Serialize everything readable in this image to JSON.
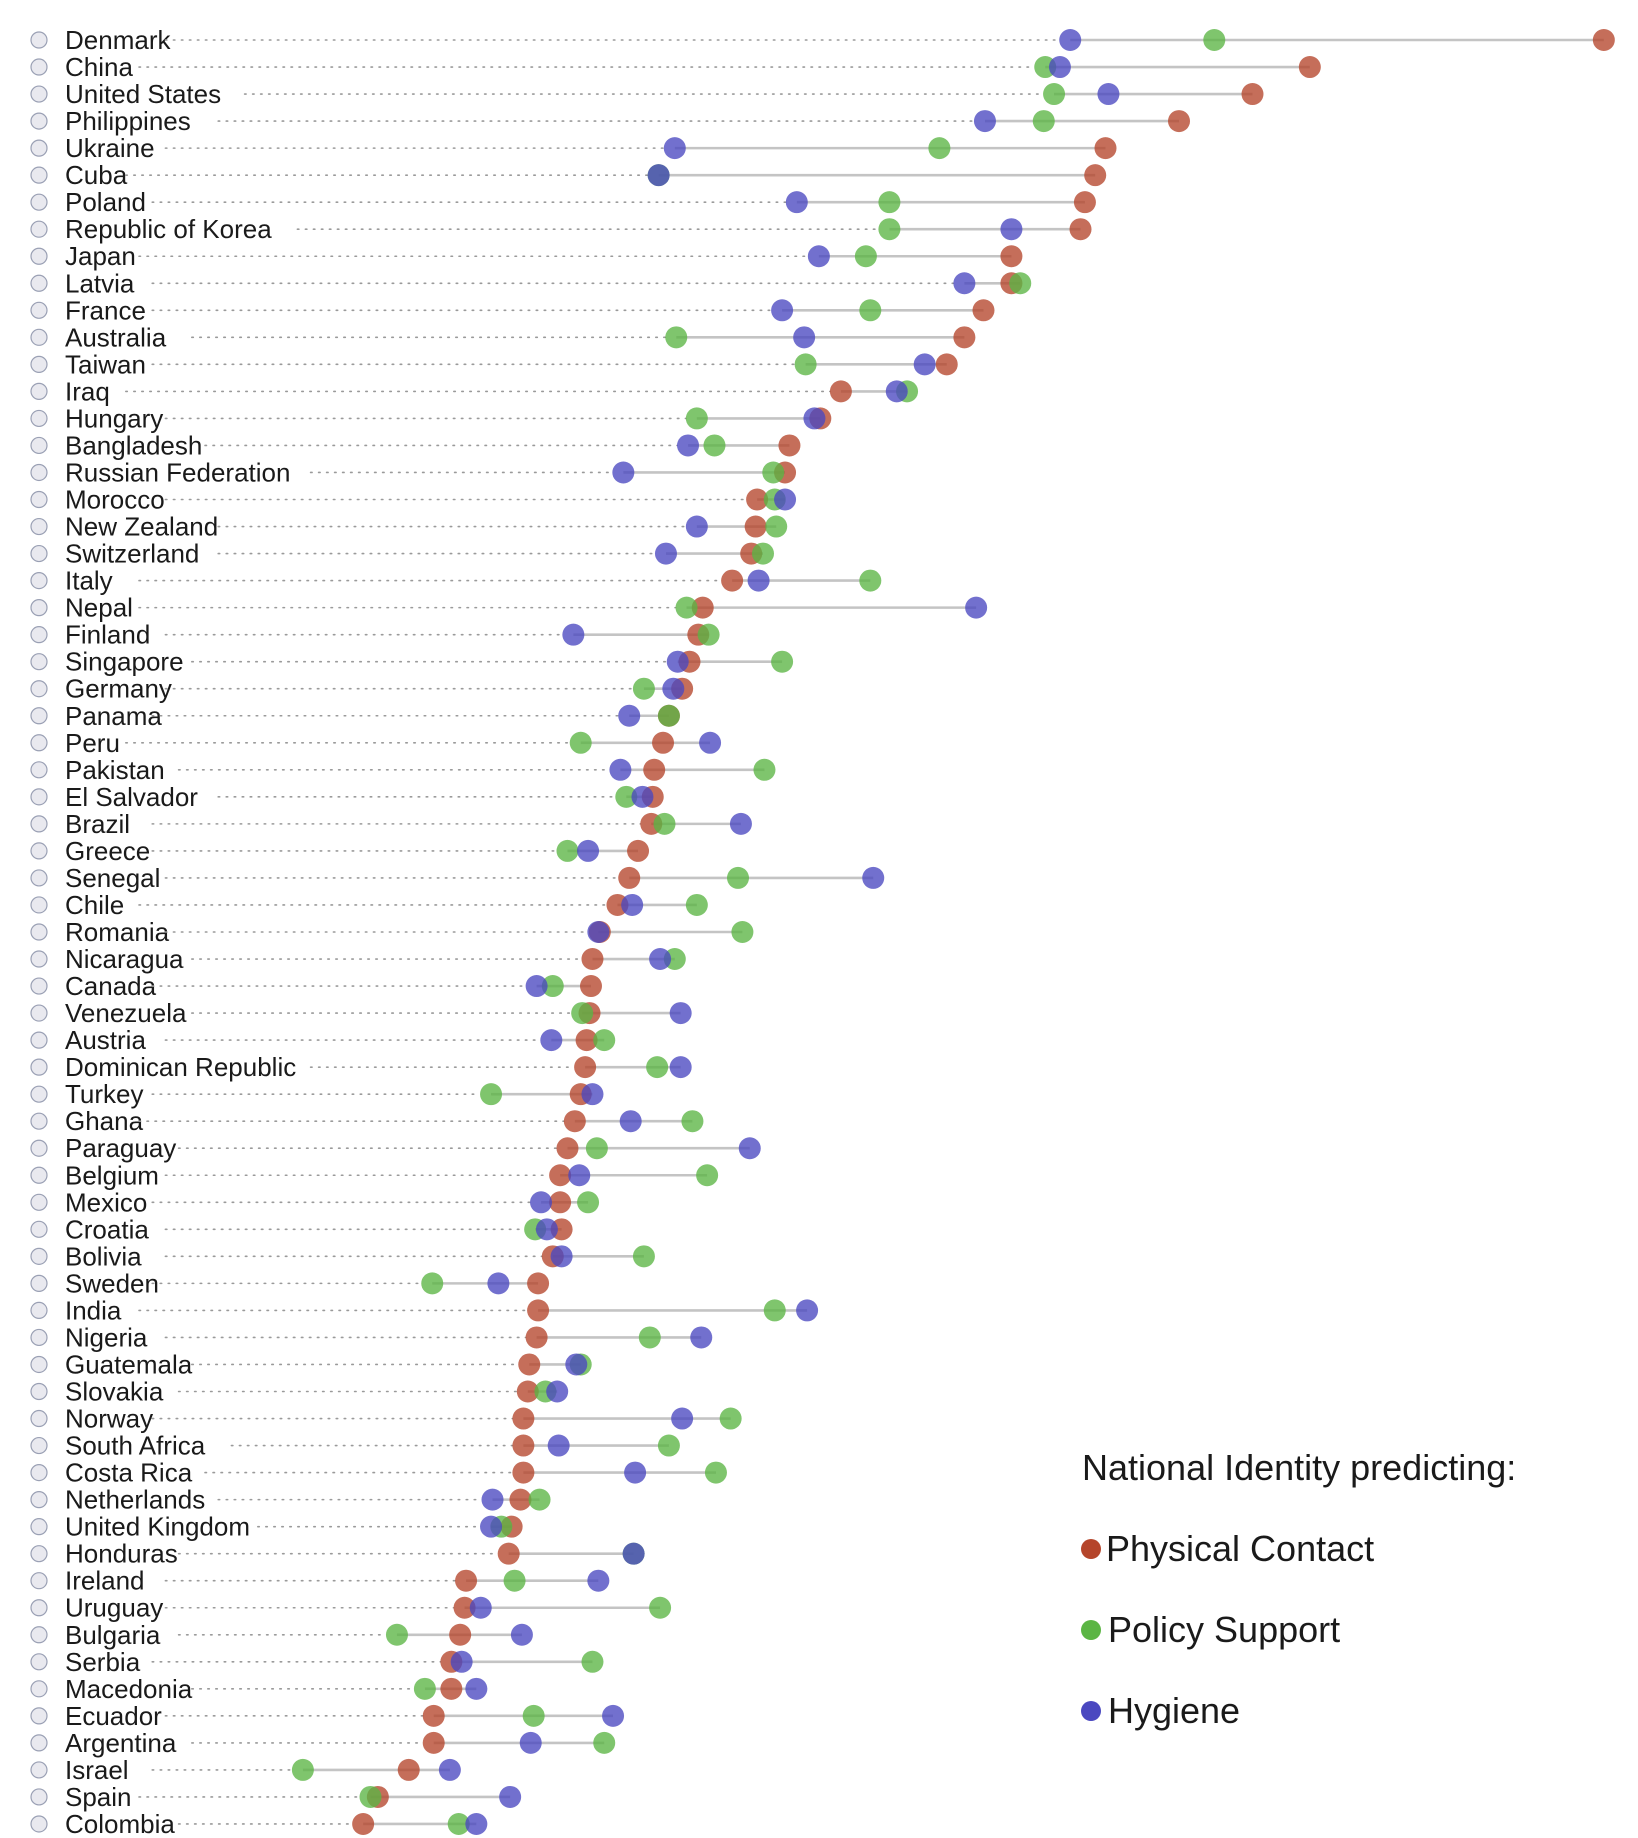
{
  "chart_data": {
    "type": "dot",
    "title": "",
    "xlabel": "",
    "ylabel": "",
    "xlim": [
      0,
      1
    ],
    "grid": false,
    "legend": {
      "title": "National Identity predicting:",
      "placement": "bottom-right",
      "entries": [
        {
          "key": "physical_contact",
          "label": "Physical Contact",
          "color": "#b5452b"
        },
        {
          "key": "policy_support",
          "label": "Policy Support",
          "color": "#5bb544"
        },
        {
          "key": "hygiene",
          "label": "Hygiene",
          "color": "#4a48c0"
        }
      ]
    },
    "series_keys": [
      "physical_contact",
      "policy_support",
      "hygiene"
    ],
    "rows": [
      {
        "country": "Denmark",
        "physical_contact": 0.989,
        "policy_support": 0.724,
        "hygiene": 0.626
      },
      {
        "country": "China",
        "physical_contact": 0.789,
        "policy_support": 0.609,
        "hygiene": 0.619
      },
      {
        "country": "United States",
        "physical_contact": 0.75,
        "policy_support": 0.615,
        "hygiene": 0.652
      },
      {
        "country": "Philippines",
        "physical_contact": 0.7,
        "policy_support": 0.608,
        "hygiene": 0.568
      },
      {
        "country": "Ukraine",
        "physical_contact": 0.65,
        "policy_support": 0.537,
        "hygiene": 0.357
      },
      {
        "country": "Cuba",
        "physical_contact": 0.643,
        "policy_support": 0.346,
        "hygiene": 0.346
      },
      {
        "country": "Poland",
        "physical_contact": 0.636,
        "policy_support": 0.503,
        "hygiene": 0.44
      },
      {
        "country": "Republic of Korea",
        "physical_contact": 0.633,
        "policy_support": 0.503,
        "hygiene": 0.586
      },
      {
        "country": "Japan",
        "physical_contact": 0.586,
        "policy_support": 0.487,
        "hygiene": 0.455
      },
      {
        "country": "Latvia",
        "physical_contact": 0.586,
        "policy_support": 0.592,
        "hygiene": 0.554
      },
      {
        "country": "France",
        "physical_contact": 0.567,
        "policy_support": 0.49,
        "hygiene": 0.43
      },
      {
        "country": "Australia",
        "physical_contact": 0.554,
        "policy_support": 0.358,
        "hygiene": 0.445
      },
      {
        "country": "Taiwan",
        "physical_contact": 0.542,
        "policy_support": 0.446,
        "hygiene": 0.527
      },
      {
        "country": "Iraq",
        "physical_contact": 0.47,
        "policy_support": 0.515,
        "hygiene": 0.508
      },
      {
        "country": "Hungary",
        "physical_contact": 0.456,
        "policy_support": 0.372,
        "hygiene": 0.452
      },
      {
        "country": "Bangladesh",
        "physical_contact": 0.435,
        "policy_support": 0.384,
        "hygiene": 0.366
      },
      {
        "country": "Russian Federation",
        "physical_contact": 0.432,
        "policy_support": 0.424,
        "hygiene": 0.322
      },
      {
        "country": "Morocco",
        "physical_contact": 0.413,
        "policy_support": 0.425,
        "hygiene": 0.432
      },
      {
        "country": "New Zealand",
        "physical_contact": 0.412,
        "policy_support": 0.426,
        "hygiene": 0.372
      },
      {
        "country": "Switzerland",
        "physical_contact": 0.409,
        "policy_support": 0.417,
        "hygiene": 0.351
      },
      {
        "country": "Italy",
        "physical_contact": 0.396,
        "policy_support": 0.49,
        "hygiene": 0.414
      },
      {
        "country": "Nepal",
        "physical_contact": 0.376,
        "policy_support": 0.365,
        "hygiene": 0.562
      },
      {
        "country": "Finland",
        "physical_contact": 0.373,
        "policy_support": 0.38,
        "hygiene": 0.288
      },
      {
        "country": "Singapore",
        "physical_contact": 0.367,
        "policy_support": 0.43,
        "hygiene": 0.359
      },
      {
        "country": "Germany",
        "physical_contact": 0.362,
        "policy_support": 0.336,
        "hygiene": 0.356
      },
      {
        "country": "Panama",
        "physical_contact": 0.353,
        "policy_support": 0.353,
        "hygiene": 0.326
      },
      {
        "country": "Peru",
        "physical_contact": 0.349,
        "policy_support": 0.293,
        "hygiene": 0.381
      },
      {
        "country": "Pakistan",
        "physical_contact": 0.343,
        "policy_support": 0.418,
        "hygiene": 0.32
      },
      {
        "country": "El Salvador",
        "physical_contact": 0.342,
        "policy_support": 0.324,
        "hygiene": 0.335
      },
      {
        "country": "Brazil",
        "physical_contact": 0.341,
        "policy_support": 0.35,
        "hygiene": 0.402
      },
      {
        "country": "Greece",
        "physical_contact": 0.332,
        "policy_support": 0.284,
        "hygiene": 0.298
      },
      {
        "country": "Senegal",
        "physical_contact": 0.326,
        "policy_support": 0.4,
        "hygiene": 0.492
      },
      {
        "country": "Chile",
        "physical_contact": 0.318,
        "policy_support": 0.372,
        "hygiene": 0.328
      },
      {
        "country": "Romania",
        "physical_contact": 0.306,
        "policy_support": 0.403,
        "hygiene": 0.305
      },
      {
        "country": "Nicaragua",
        "physical_contact": 0.301,
        "policy_support": 0.357,
        "hygiene": 0.347
      },
      {
        "country": "Canada",
        "physical_contact": 0.3,
        "policy_support": 0.274,
        "hygiene": 0.263
      },
      {
        "country": "Venezuela",
        "physical_contact": 0.299,
        "policy_support": 0.294,
        "hygiene": 0.361
      },
      {
        "country": "Austria",
        "physical_contact": 0.297,
        "policy_support": 0.309,
        "hygiene": 0.273
      },
      {
        "country": "Dominican Republic",
        "physical_contact": 0.296,
        "policy_support": 0.345,
        "hygiene": 0.361
      },
      {
        "country": "Turkey",
        "physical_contact": 0.293,
        "policy_support": 0.232,
        "hygiene": 0.301
      },
      {
        "country": "Ghana",
        "physical_contact": 0.289,
        "policy_support": 0.369,
        "hygiene": 0.327
      },
      {
        "country": "Paraguay",
        "physical_contact": 0.284,
        "policy_support": 0.304,
        "hygiene": 0.408
      },
      {
        "country": "Belgium",
        "physical_contact": 0.279,
        "policy_support": 0.379,
        "hygiene": 0.292
      },
      {
        "country": "Mexico",
        "physical_contact": 0.279,
        "policy_support": 0.298,
        "hygiene": 0.266
      },
      {
        "country": "Croatia",
        "physical_contact": 0.28,
        "policy_support": 0.262,
        "hygiene": 0.27
      },
      {
        "country": "Bolivia",
        "physical_contact": 0.274,
        "policy_support": 0.336,
        "hygiene": 0.28
      },
      {
        "country": "Sweden",
        "physical_contact": 0.264,
        "policy_support": 0.192,
        "hygiene": 0.237
      },
      {
        "country": "India",
        "physical_contact": 0.264,
        "policy_support": 0.425,
        "hygiene": 0.447
      },
      {
        "country": "Nigeria",
        "physical_contact": 0.263,
        "policy_support": 0.34,
        "hygiene": 0.375
      },
      {
        "country": "Guatemala",
        "physical_contact": 0.258,
        "policy_support": 0.293,
        "hygiene": 0.29
      },
      {
        "country": "Slovakia",
        "physical_contact": 0.257,
        "policy_support": 0.269,
        "hygiene": 0.277
      },
      {
        "country": "Norway",
        "physical_contact": 0.254,
        "policy_support": 0.395,
        "hygiene": 0.362
      },
      {
        "country": "South Africa",
        "physical_contact": 0.254,
        "policy_support": 0.353,
        "hygiene": 0.278
      },
      {
        "country": "Costa Rica",
        "physical_contact": 0.254,
        "policy_support": 0.385,
        "hygiene": 0.33
      },
      {
        "country": "Netherlands",
        "physical_contact": 0.252,
        "policy_support": 0.265,
        "hygiene": 0.233
      },
      {
        "country": "United Kingdom",
        "physical_contact": 0.246,
        "policy_support": 0.239,
        "hygiene": 0.232
      },
      {
        "country": "Honduras",
        "physical_contact": 0.244,
        "policy_support": 0.329,
        "hygiene": 0.329
      },
      {
        "country": "Ireland",
        "physical_contact": 0.215,
        "policy_support": 0.248,
        "hygiene": 0.305
      },
      {
        "country": "Uruguay",
        "physical_contact": 0.214,
        "policy_support": 0.347,
        "hygiene": 0.225
      },
      {
        "country": "Bulgaria",
        "physical_contact": 0.211,
        "policy_support": 0.168,
        "hygiene": 0.253
      },
      {
        "country": "Serbia",
        "physical_contact": 0.205,
        "policy_support": 0.301,
        "hygiene": 0.212
      },
      {
        "country": "Macedonia",
        "physical_contact": 0.205,
        "policy_support": 0.187,
        "hygiene": 0.222
      },
      {
        "country": "Ecuador",
        "physical_contact": 0.193,
        "policy_support": 0.261,
        "hygiene": 0.315
      },
      {
        "country": "Argentina",
        "physical_contact": 0.193,
        "policy_support": 0.309,
        "hygiene": 0.259
      },
      {
        "country": "Israel",
        "physical_contact": 0.176,
        "policy_support": 0.104,
        "hygiene": 0.204
      },
      {
        "country": "Spain",
        "physical_contact": 0.155,
        "policy_support": 0.15,
        "hygiene": 0.245
      },
      {
        "country": "Colombia",
        "physical_contact": 0.145,
        "policy_support": 0.21,
        "hygiene": 0.222
      }
    ]
  }
}
